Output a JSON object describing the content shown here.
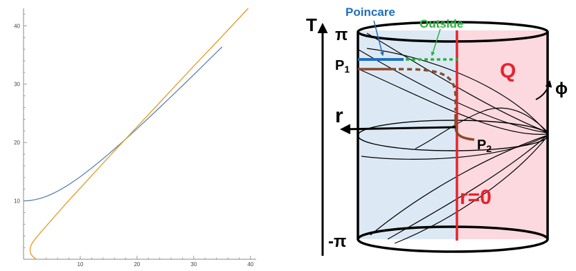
{
  "chart_data": {
    "type": "line",
    "title": "",
    "xlabel": "",
    "ylabel": "",
    "xlim": [
      0,
      41
    ],
    "ylim": [
      0,
      43
    ],
    "x_ticks": [
      "10",
      "20",
      "30",
      "40"
    ],
    "y_ticks": [
      "10",
      "20",
      "30",
      "40"
    ],
    "grid": false,
    "series": [
      {
        "color": "#5e81b5",
        "points": [
          [
            0,
            10
          ],
          [
            1,
            10.05
          ],
          [
            2,
            10.2
          ],
          [
            3,
            10.44
          ],
          [
            4,
            10.77
          ],
          [
            5,
            11.18
          ],
          [
            6,
            11.66
          ],
          [
            7,
            12.21
          ],
          [
            8,
            12.81
          ],
          [
            10,
            14.14
          ],
          [
            12,
            15.62
          ],
          [
            14,
            17.2
          ],
          [
            16,
            18.87
          ],
          [
            18,
            20.59
          ],
          [
            20,
            22.36
          ],
          [
            22,
            24.17
          ],
          [
            24,
            26.0
          ],
          [
            26,
            27.86
          ],
          [
            28,
            29.73
          ],
          [
            30,
            31.62
          ],
          [
            32,
            33.53
          ],
          [
            34,
            35.44
          ],
          [
            34.8,
            36.2
          ],
          [
            35,
            36.4
          ]
        ]
      },
      {
        "color": "#e19c24",
        "points": [
          [
            2.2,
            0
          ],
          [
            1.6,
            0.5
          ],
          [
            1.25,
            1
          ],
          [
            1.15,
            1.6
          ],
          [
            1.25,
            2.2
          ],
          [
            1.55,
            2.8
          ],
          [
            2,
            3.4
          ],
          [
            3,
            4.6
          ],
          [
            4,
            5.7
          ],
          [
            6,
            7.9
          ],
          [
            8,
            10.1
          ],
          [
            10,
            12.2
          ],
          [
            15,
            17.5
          ],
          [
            20,
            22.7
          ],
          [
            25,
            27.9
          ],
          [
            30,
            33.1
          ],
          [
            35,
            38.2
          ],
          [
            39.6,
            43
          ]
        ]
      }
    ]
  },
  "diagram": {
    "axis_T_label": "T",
    "pi_top_label": "π",
    "pi_bottom_label": "-π",
    "poincare_label": "Poincare",
    "outside_label": "Outside",
    "p1_label": "P",
    "p1_sub": "1",
    "p2_label": "P",
    "p2_sub": "2",
    "q_label": "Q",
    "phi_label": "ϕ",
    "r_label": "r",
    "r0_label": "r=0",
    "colors": {
      "blue_region": "#dce9f5",
      "pink_region": "#fbd9df",
      "poincare": "#1f6fbf",
      "outside": "#2bb040",
      "red": "#e8222c",
      "brown": "#8b4a2b"
    }
  }
}
